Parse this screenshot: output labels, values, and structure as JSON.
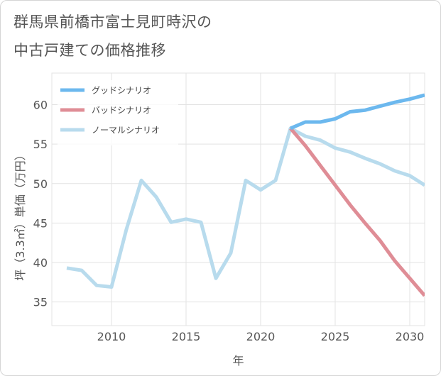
{
  "title_lines": [
    "群馬県前橋市富士見町時沢の",
    "中古戸建ての価格推移"
  ],
  "chart_data": {
    "type": "line",
    "title": "群馬県前橋市富士見町時沢の中古戸建ての価格推移",
    "xlabel": "年",
    "ylabel": "坪（3.3㎡）単価（万円）",
    "xlim": [
      2006,
      2031
    ],
    "ylim": [
      32,
      64
    ],
    "xticks": [
      2010,
      2015,
      2020,
      2025,
      2030
    ],
    "yticks": [
      35,
      40,
      45,
      50,
      55,
      60
    ],
    "grid": true,
    "legend_position": "top-left",
    "series": [
      {
        "name": "グッドシナリオ",
        "color": "#6cb8ee",
        "x": [
          2022,
          2023,
          2024,
          2025,
          2026,
          2027,
          2028,
          2029,
          2030,
          2031
        ],
        "values": [
          57.0,
          57.8,
          57.8,
          58.2,
          59.1,
          59.3,
          59.8,
          60.3,
          60.7,
          61.2
        ]
      },
      {
        "name": "バッドシナリオ",
        "color": "#df8d96",
        "x": [
          2022,
          2023,
          2024,
          2025,
          2026,
          2027,
          2028,
          2029,
          2030,
          2031
        ],
        "values": [
          57.0,
          54.8,
          52.3,
          49.8,
          47.3,
          45.0,
          42.8,
          40.2,
          38.0,
          35.8
        ]
      },
      {
        "name": "ノーマルシナリオ",
        "color": "#b8dbed",
        "x": [
          2007,
          2008,
          2009,
          2010,
          2011,
          2012,
          2013,
          2014,
          2015,
          2016,
          2017,
          2018,
          2019,
          2020,
          2021,
          2022,
          2023,
          2024,
          2025,
          2026,
          2027,
          2028,
          2029,
          2030,
          2031
        ],
        "values": [
          39.3,
          39.0,
          37.1,
          36.9,
          44.2,
          50.4,
          48.3,
          45.1,
          45.5,
          45.1,
          38.0,
          41.2,
          50.4,
          49.2,
          50.4,
          57.0,
          56.0,
          55.5,
          54.5,
          54.0,
          53.2,
          52.5,
          51.6,
          51.0,
          49.8
        ]
      }
    ]
  }
}
